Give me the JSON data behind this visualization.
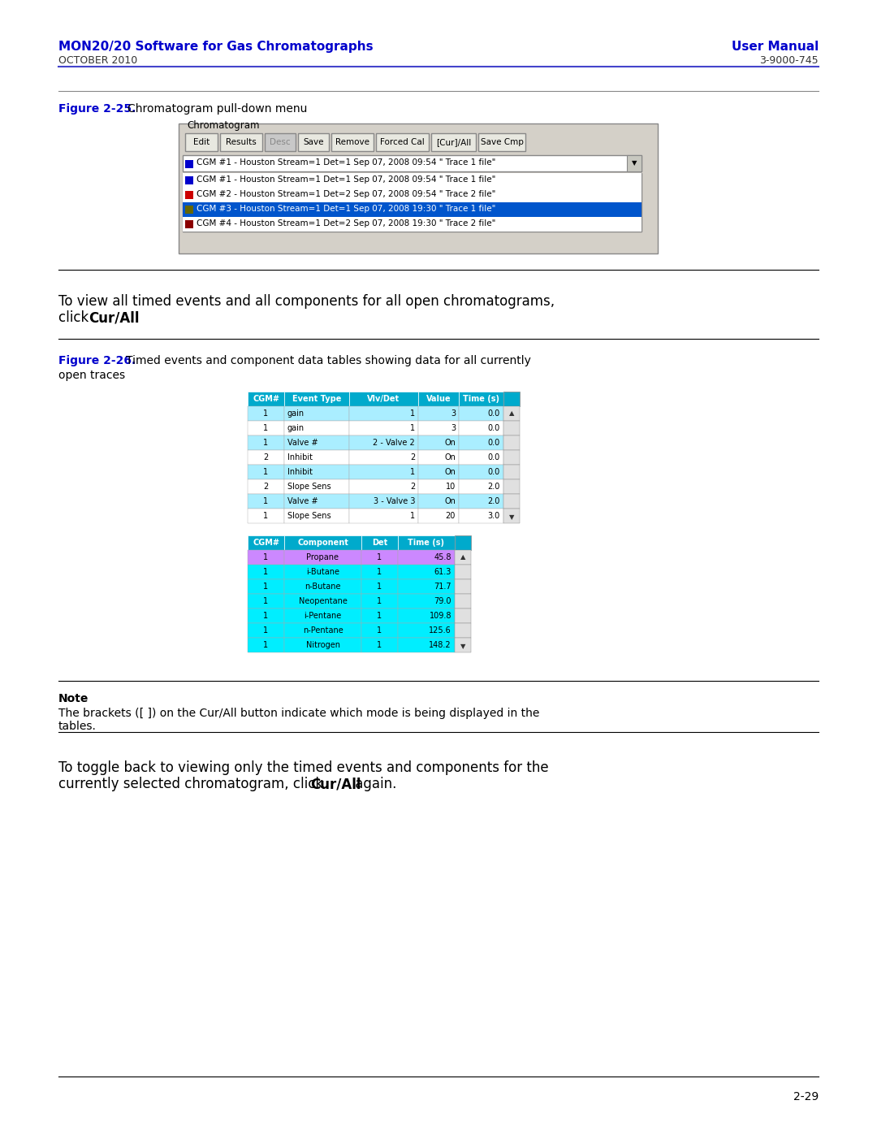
{
  "page_bg": "#ffffff",
  "header_left_bold": "MON20/20 Software for Gas Chromatographs",
  "header_left_sub": "OCTOBER 2010",
  "header_right_bold": "User Manual",
  "header_right_sub": "3-9000-745",
  "header_color": "#0000cc",
  "header_line_color": "#4444cc",
  "fig25_label": "Figure 2-25.",
  "fig25_label_color": "#0000cc",
  "fig25_caption": "  Chromatogram pull-down menu",
  "fig26_label": "Figure 2-26.",
  "fig26_label_color": "#0000cc",
  "fig26_caption": "  Timed events and component data tables showing data for all currently\nopen traces",
  "chromatogram_group_title": "Chromatogram",
  "buttons": [
    "Edit",
    "Results",
    "Desc",
    "Save",
    "Remove",
    "Forced Cal",
    "[Cur]/All",
    "Save Cmp"
  ],
  "desc_grayed": true,
  "dropdown_text": "CGM #1 - Houston Stream=1 Det=1 Sep 07, 2008 09:54 \" Trace 1 file\"",
  "list_items": [
    {
      "color": "#0000cc",
      "text": "CGM #1 - Houston Stream=1 Det=1 Sep 07, 2008 09:54 \" Trace 1 file\"",
      "selected": false
    },
    {
      "color": "#cc0000",
      "text": "CGM #2 - Houston Stream=1 Det=2 Sep 07, 2008 09:54 \" Trace 2 file\"",
      "selected": false
    },
    {
      "color": "#666600",
      "text": "CGM #3 - Houston Stream=1 Det=1 Sep 07, 2008 19:30 \" Trace 1 file\"",
      "selected": true
    },
    {
      "color": "#8b0000",
      "text": "CGM #4 - Houston Stream=1 Det=2 Sep 07, 2008 19:30 \" Trace 2 file\"",
      "selected": false
    }
  ],
  "body_text1": "To view all timed events and all components for all open chromatograms,\nclick ",
  "body_text1_bold": "Cur/All",
  "body_text1_end": ".",
  "table1_headers": [
    "CGM#",
    "Event Type",
    "Vlv/Det",
    "Value",
    "Time (s)"
  ],
  "table1_header_bg": "#00aacc",
  "table1_rows": [
    {
      "cgm": "1",
      "event": "gain",
      "vlv": "1",
      "value": "3",
      "time": "0.0",
      "bg": "#aaeeff"
    },
    {
      "cgm": "1",
      "event": "gain",
      "vlv": "1",
      "value": "3",
      "time": "0.0",
      "bg": "#ffffff"
    },
    {
      "cgm": "1",
      "event": "Valve #",
      "vlv": "2 - Valve 2",
      "value": "On",
      "time": "0.0",
      "bg": "#aaeeff"
    },
    {
      "cgm": "2",
      "event": "Inhibit",
      "vlv": "2",
      "value": "On",
      "time": "0.0",
      "bg": "#ffffff"
    },
    {
      "cgm": "1",
      "event": "Inhibit",
      "vlv": "1",
      "value": "On",
      "time": "0.0",
      "bg": "#aaeeff"
    },
    {
      "cgm": "2",
      "event": "Slope Sens",
      "vlv": "2",
      "value": "10",
      "time": "2.0",
      "bg": "#ffffff"
    },
    {
      "cgm": "1",
      "event": "Valve #",
      "vlv": "3 - Valve 3",
      "value": "On",
      "time": "2.0",
      "bg": "#aaeeff"
    },
    {
      "cgm": "1",
      "event": "Slope Sens",
      "vlv": "1",
      "value": "20",
      "time": "3.0",
      "bg": "#ffffff"
    }
  ],
  "table2_headers": [
    "CGM#",
    "Component",
    "Det",
    "Time (s)"
  ],
  "table2_header_bg": "#00aacc",
  "table2_rows": [
    {
      "cgm": "1",
      "component": "Propane",
      "det": "1",
      "time": "45.8",
      "bg": "#cc88ff"
    },
    {
      "cgm": "1",
      "component": "i-Butane",
      "det": "1",
      "time": "61.3",
      "bg": "#00eeff"
    },
    {
      "cgm": "1",
      "component": "n-Butane",
      "det": "1",
      "time": "71.7",
      "bg": "#00eeff"
    },
    {
      "cgm": "1",
      "component": "Neopentane",
      "det": "1",
      "time": "79.0",
      "bg": "#00eeff"
    },
    {
      "cgm": "1",
      "component": "i-Pentane",
      "det": "1",
      "time": "109.8",
      "bg": "#00eeff"
    },
    {
      "cgm": "1",
      "component": "n-Pentane",
      "det": "1",
      "time": "125.6",
      "bg": "#00eeff"
    },
    {
      "cgm": "1",
      "component": "Nitrogen",
      "det": "1",
      "time": "148.2",
      "bg": "#00eeff"
    }
  ],
  "note_title": "Note",
  "note_text": "The brackets ([ ]) on the Cur/All button indicate which mode is being displayed in the\ntables.",
  "body_text2": "To toggle back to viewing only the timed events and components for the\ncurrently selected chromatogram, click ",
  "body_text2_bold": "Cur/All",
  "body_text2_end": " again.",
  "page_number": "2-29",
  "separator_color": "#000000",
  "note_line_color": "#000000"
}
